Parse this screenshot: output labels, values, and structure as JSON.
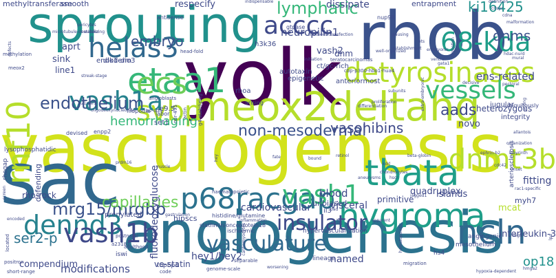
{
  "words": [
    {
      "text": "vasculogenesis",
      "color": "#d2e21b",
      "size": 1.0
    },
    {
      "text": "angiogenesis",
      "color": "#2c728e",
      "size": 0.92
    },
    {
      "text": "yolk",
      "color": "#440154",
      "size": 0.86
    },
    {
      "text": "rhob",
      "color": "#3b528b",
      "size": 0.8
    },
    {
      "text": "sac",
      "color": "#31688e",
      "size": 0.78
    },
    {
      "text": "sprouting",
      "color": "#21918c",
      "size": 0.72
    },
    {
      "text": "meox2deltahq",
      "color": "#b5de2b",
      "size": 0.55
    },
    {
      "text": "etaa1",
      "color": "#35b779",
      "size": 0.5
    },
    {
      "text": "detyrosinases",
      "color": "#b5de2b",
      "size": 0.48
    },
    {
      "text": "tbata",
      "color": "#1f9e89",
      "size": 0.46
    },
    {
      "text": "p68racgap",
      "color": "#2c728e",
      "size": 0.45
    },
    {
      "text": "acccc",
      "color": "#3e4989",
      "size": 0.43
    },
    {
      "text": "helas3",
      "color": "#31688e",
      "size": 0.42
    },
    {
      "text": "vash1a",
      "color": "#26828e",
      "size": 0.4
    },
    {
      "text": "hygroma",
      "color": "#1f9e89",
      "size": 0.4
    },
    {
      "text": "dnmt3b",
      "color": "#b5de2b",
      "size": 0.38
    },
    {
      "text": "dennd3",
      "color": "#26828e",
      "size": 0.38
    },
    {
      "text": "vash1b",
      "color": "#3e4989",
      "size": 0.37
    },
    {
      "text": "ncln",
      "color": "#31688e",
      "size": 0.37
    },
    {
      "text": "rnf10",
      "color": "#b5de2b",
      "size": 0.36
    },
    {
      "text": "ecs",
      "color": "#6ece58",
      "size": 0.35
    },
    {
      "text": "svbp",
      "color": "#b5de2b",
      "size": 0.34
    },
    {
      "text": "68-kda",
      "color": "#1f9e89",
      "size": 0.34
    },
    {
      "text": "vash1",
      "color": "#35b779",
      "size": 0.33
    },
    {
      "text": "vessels",
      "color": "#35b779",
      "size": 0.32
    },
    {
      "text": "vasculature",
      "color": "#31688e",
      "size": 0.3
    },
    {
      "text": "mrg15/mrgbp",
      "color": "#3b528b",
      "size": 0.28
    },
    {
      "text": "insulator",
      "color": "#3e4989",
      "size": 0.28
    },
    {
      "text": "capillaries",
      "color": "#6ece58",
      "size": 0.26
    },
    {
      "text": "endothelium",
      "color": "#3b528b",
      "size": 0.25
    },
    {
      "text": "non-mesodermal",
      "color": "#3b528b",
      "size": 0.24
    },
    {
      "text": "lymphatic",
      "color": "#35b779",
      "size": 0.24
    },
    {
      "text": "ki16425",
      "color": "#21918c",
      "size": 0.23
    },
    {
      "text": "vasohibins",
      "color": "#3e4989",
      "size": 0.23
    },
    {
      "text": "dnms",
      "color": "#3b528b",
      "size": 0.22
    },
    {
      "text": "aads",
      "color": "#3e4989",
      "size": 0.22
    },
    {
      "text": "embryo",
      "color": "#3b528b",
      "size": 0.2
    },
    {
      "text": "ser2-p",
      "color": "#2c728e",
      "size": 0.2
    },
    {
      "text": "op18",
      "color": "#21918c",
      "size": 0.2
    },
    {
      "text": "hemorrhaging",
      "color": "#35b779",
      "size": 0.19
    },
    {
      "text": "neuropilin1",
      "color": "#3e4989",
      "size": 0.18
    },
    {
      "text": "modifications",
      "color": "#3e4989",
      "size": 0.17
    },
    {
      "text": "hey1/hey2",
      "color": "#3e4989",
      "size": 0.16
    },
    {
      "text": "cardiovascular",
      "color": "#3e4989",
      "size": 0.16
    },
    {
      "text": "interleukin-3",
      "color": "#3e4989",
      "size": 0.16
    },
    {
      "text": "ens-related",
      "color": "#3e4989",
      "size": 0.15
    },
    {
      "text": "visceral",
      "color": "#3e4989",
      "size": 0.15
    },
    {
      "text": "dissipate",
      "color": "#3e4989",
      "size": 0.15
    },
    {
      "text": "named",
      "color": "#3e4989",
      "size": 0.15
    },
    {
      "text": "blood",
      "color": "#3e4989",
      "size": 0.15
    },
    {
      "text": "fitting",
      "color": "#3e4989",
      "size": 0.15
    },
    {
      "text": "vash2",
      "color": "#3e4989",
      "size": 0.14
    },
    {
      "text": "novo",
      "color": "#3e4989",
      "size": 0.14
    },
    {
      "text": "respecify",
      "color": "#3e4989",
      "size": 0.14
    },
    {
      "text": "fluorodeoxyglucose",
      "color": "#3e4989",
      "size": 0.14
    },
    {
      "text": "mcat",
      "color": "#b5de2b",
      "size": 0.14
    },
    {
      "text": "quadruplex",
      "color": "#3e4989",
      "size": 0.14
    },
    {
      "text": "compendium",
      "color": "#3e4989",
      "size": 0.13
    },
    {
      "text": "sink",
      "color": "#3e4989",
      "size": 0.13
    },
    {
      "text": "islands",
      "color": "#3e4989",
      "size": 0.13
    },
    {
      "text": "aprt",
      "color": "#3e4989",
      "size": 0.13
    },
    {
      "text": "dnm",
      "color": "#3e4989",
      "size": 0.13
    },
    {
      "text": "line1",
      "color": "#3e4989",
      "size": 0.12
    },
    {
      "text": "ve-statin",
      "color": "#3e4989",
      "size": 0.12
    },
    {
      "text": "rho-rock",
      "color": "#3e4989",
      "size": 0.12
    },
    {
      "text": "heterozygous",
      "color": "#3e4989",
      "size": 0.12
    },
    {
      "text": "primitive",
      "color": "#3e4989",
      "size": 0.12
    },
    {
      "text": "hipscs",
      "color": "#3e4989",
      "size": 0.12
    },
    {
      "text": "defending",
      "color": "#3e4989",
      "size": 0.11
    },
    {
      "text": "unbiased",
      "color": "#3e4989",
      "size": 0.11
    },
    {
      "text": "myh7",
      "color": "#3e4989",
      "size": 0.11
    },
    {
      "text": "smooth",
      "color": "#3e4989",
      "size": 0.11
    },
    {
      "text": "methyltransferase",
      "color": "#3e4989",
      "size": 0.11
    },
    {
      "text": "entrapment",
      "color": "#3e4989",
      "size": 0.11
    },
    {
      "text": "prenylated",
      "color": "#3e4989",
      "size": 0.11
    },
    {
      "text": "epigenetic",
      "color": "#3e4989",
      "size": 0.1
    },
    {
      "text": "ct/gc-rich",
      "color": "#3e4989",
      "size": 0.1
    },
    {
      "text": "anteriormost",
      "color": "#3e4989",
      "size": 0.1
    },
    {
      "text": "autotaxin",
      "color": "#3e4989",
      "size": 0.1
    },
    {
      "text": "rhoa",
      "color": "#3e4989",
      "size": 0.1
    },
    {
      "text": "dlk1-dio3",
      "color": "#3e4989",
      "size": 0.1
    },
    {
      "text": "endoderm",
      "color": "#3e4989",
      "size": 0.1
    },
    {
      "text": "h3k36",
      "color": "#3e4989",
      "size": 0.1
    },
    {
      "text": "jugular",
      "color": "#3e4989",
      "size": 0.1
    },
    {
      "text": "integrity",
      "color": "#3e4989",
      "size": 0.1
    },
    {
      "text": "e9.5",
      "color": "#3e4989",
      "size": 0.1
    },
    {
      "text": "set1",
      "color": "#3e4989",
      "size": 0.1
    },
    {
      "text": "il3",
      "color": "#3e4989",
      "size": 0.1
    },
    {
      "text": "lineage",
      "color": "#3e4989",
      "size": 0.1
    },
    {
      "text": "topbp1",
      "color": "#3e4989",
      "size": 0.09
    },
    {
      "text": "iswi",
      "color": "#3e4989",
      "size": 0.09
    },
    {
      "text": "hs4",
      "color": "#3e4989",
      "size": 0.09
    },
    {
      "text": "mesothelium",
      "color": "#3e4989",
      "size": 0.09
    },
    {
      "text": "angiogenic",
      "color": "#3e4989",
      "size": 0.09
    },
    {
      "text": "lysophosphatidic",
      "color": "#3e4989",
      "size": 0.09
    },
    {
      "text": "rhogap",
      "color": "#3e4989",
      "size": 0.09
    },
    {
      "text": "arteriosclerosis",
      "color": "#3e4989",
      "size": 0.09
    },
    {
      "text": "hypervascularization",
      "color": "#3e4989",
      "size": 0.09
    },
    {
      "text": "stathmin/oncoprotein18",
      "color": "#3e4989",
      "size": 0.09
    },
    {
      "text": "ischaemic",
      "color": "#3e4989",
      "size": 0.08
    },
    {
      "text": "histidine/glutamine",
      "color": "#3e4989",
      "size": 0.08
    },
    {
      "text": "ubiquitously",
      "color": "#3e4989",
      "size": 0.08
    },
    {
      "text": "enpp2",
      "color": "#3e4989",
      "size": 0.08
    },
    {
      "text": "devised",
      "color": "#3e4989",
      "size": 0.08
    },
    {
      "text": "labor",
      "color": "#3e4989",
      "size": 0.08
    },
    {
      "text": "arising",
      "color": "#3e4989",
      "size": 0.08
    },
    {
      "text": "filopodia",
      "color": "#3e4989",
      "size": 0.08
    },
    {
      "text": "antisense",
      "color": "#3e4989",
      "size": 0.08
    },
    {
      "text": "nup98",
      "color": "#3e4989",
      "size": 0.08
    },
    {
      "text": "gtpase",
      "color": "#3e4989",
      "size": 0.08
    },
    {
      "text": "teratocarcinomas",
      "color": "#3e4989",
      "size": 0.08
    },
    {
      "text": "cbp-p300-hbo1-hua4",
      "color": "#3e4989",
      "size": 0.07
    },
    {
      "text": "meox2",
      "color": "#3e4989",
      "size": 0.07
    },
    {
      "text": "methylation",
      "color": "#3e4989",
      "size": 0.07
    },
    {
      "text": "head-fold",
      "color": "#3e4989",
      "size": 0.07
    },
    {
      "text": "angioblasts",
      "color": "#3e4989",
      "size": 0.07
    },
    {
      "text": "as-odn",
      "color": "#3e4989",
      "size": 0.07
    },
    {
      "text": "mir-495",
      "color": "#3e4989",
      "size": 0.07
    },
    {
      "text": "actin",
      "color": "#3e4989",
      "size": 0.07
    },
    {
      "text": "g4-stabilizing",
      "color": "#3e4989",
      "size": 0.07
    },
    {
      "text": "haematopoietic",
      "color": "#3e4989",
      "size": 0.07
    },
    {
      "text": "postnatal",
      "color": "#3e4989",
      "size": 0.07
    },
    {
      "text": "adulthood",
      "color": "#3e4989",
      "size": 0.07
    },
    {
      "text": "a23187",
      "color": "#3e4989",
      "size": 0.07
    },
    {
      "text": "positron",
      "color": "#3e4989",
      "size": 0.07
    },
    {
      "text": "short-range",
      "color": "#3e4989",
      "size": 0.07
    },
    {
      "text": "code",
      "color": "#3e4989",
      "size": 0.07
    },
    {
      "text": "genome-scale",
      "color": "#3e4989",
      "size": 0.07
    },
    {
      "text": "separable",
      "color": "#3e4989",
      "size": 0.07
    },
    {
      "text": "migration",
      "color": "#3e4989",
      "size": 0.07
    },
    {
      "text": "located",
      "color": "#3e4989",
      "size": 0.07
    },
    {
      "text": "encoded",
      "color": "#3e4989",
      "size": 0.07
    },
    {
      "text": "gastrulation",
      "color": "#3e4989",
      "size": 0.07
    },
    {
      "text": "worsening",
      "color": "#3e4989",
      "size": 0.06
    },
    {
      "text": "establishment",
      "color": "#3e4989",
      "size": 0.06
    },
    {
      "text": "definition",
      "color": "#3e4989",
      "size": 0.06
    },
    {
      "text": "crispr",
      "color": "#3e4989",
      "size": 0.06
    },
    {
      "text": "cdna",
      "color": "#3e4989",
      "size": 0.06
    },
    {
      "text": "malformation",
      "color": "#3e4989",
      "size": 0.06
    },
    {
      "text": "hdac-nurd",
      "color": "#3e4989",
      "size": 0.06
    },
    {
      "text": "mural",
      "color": "#3e4989",
      "size": 0.06
    },
    {
      "text": "well-organized",
      "color": "#3e4989",
      "size": 0.06
    },
    {
      "text": "indispensable",
      "color": "#3e4989",
      "size": 0.06
    },
    {
      "text": "microtubule-destabilizing",
      "color": "#3e4989",
      "size": 0.06
    },
    {
      "text": "emission",
      "color": "#3e4989",
      "size": 0.06
    },
    {
      "text": "pericytes",
      "color": "#3e4989",
      "size": 0.06
    },
    {
      "text": "defects",
      "color": "#3e4989",
      "size": 0.06
    },
    {
      "text": "initiation",
      "color": "#3e4989",
      "size": 0.06
    },
    {
      "text": "transient-transfection",
      "color": "#3e4989",
      "size": 0.06
    },
    {
      "text": "pausing",
      "color": "#3e4989",
      "size": 0.06
    },
    {
      "text": "acting",
      "color": "#3e4989",
      "size": 0.06
    },
    {
      "text": "decisive",
      "color": "#3e4989",
      "size": 0.06
    },
    {
      "text": "allantois",
      "color": "#3e4989",
      "size": 0.06
    },
    {
      "text": "organization",
      "color": "#3e4989",
      "size": 0.06
    },
    {
      "text": "labyrinth",
      "color": "#3e4989",
      "size": 0.06
    },
    {
      "text": "ephrin-b2",
      "color": "#3e4989",
      "size": 0.06
    },
    {
      "text": "cdc42",
      "color": "#3e4989",
      "size": 0.06
    },
    {
      "text": "onset",
      "color": "#3e4989",
      "size": 0.06
    },
    {
      "text": "rac1-specific",
      "color": "#3e4989",
      "size": 0.06
    },
    {
      "text": "jagged1",
      "color": "#3e4989",
      "size": 0.06
    },
    {
      "text": "beta-globin",
      "color": "#3e4989",
      "size": 0.06
    },
    {
      "text": "retinol",
      "color": "#3e4989",
      "size": 0.06
    },
    {
      "text": "bound",
      "color": "#3e4989",
      "size": 0.06
    },
    {
      "text": "fate",
      "color": "#3e4989",
      "size": 0.06
    },
    {
      "text": "hey",
      "color": "#3e4989",
      "size": 0.06
    },
    {
      "text": "prdm16",
      "color": "#3e4989",
      "size": 0.06
    },
    {
      "text": "muscle",
      "color": "#3e4989",
      "size": 0.06
    },
    {
      "text": "pad",
      "color": "#3e4989",
      "size": 0.06
    },
    {
      "text": "hmga2",
      "color": "#3e4989",
      "size": 0.06
    },
    {
      "text": "hypoxia-dependent",
      "color": "#3e4989",
      "size": 0.06
    },
    {
      "text": "vegf",
      "color": "#3e4989",
      "size": 0.06
    },
    {
      "text": "lpa",
      "color": "#3e4989",
      "size": 0.06
    },
    {
      "text": "screen",
      "color": "#3e4989",
      "size": 0.06
    },
    {
      "text": "streak-stage",
      "color": "#3e4989",
      "size": 0.06
    },
    {
      "text": "p21waf1",
      "color": "#3e4989",
      "size": 0.06
    },
    {
      "text": "oligodeoxynucleotide",
      "color": "#3e4989",
      "size": 0.06
    },
    {
      "text": "inflammation",
      "color": "#3e4989",
      "size": 0.06
    },
    {
      "text": "cardiomyocytes",
      "color": "#3e4989",
      "size": 0.06
    },
    {
      "text": "fgf",
      "color": "#3e4989",
      "size": 0.06
    },
    {
      "text": "aneurysms",
      "color": "#3e4989",
      "size": 0.06
    },
    {
      "text": "apparent",
      "color": "#3e4989",
      "size": 0.06
    },
    {
      "text": "hematopoietic",
      "color": "#3e4989",
      "size": 0.06
    },
    {
      "text": "extra-embryonic",
      "color": "#3e4989",
      "size": 0.06
    },
    {
      "text": "formation",
      "color": "#3e4989",
      "size": 0.06
    },
    {
      "text": "pectoral",
      "color": "#3e4989",
      "size": 0.06
    },
    {
      "text": "subunits",
      "color": "#3e4989",
      "size": 0.06
    },
    {
      "text": "proliferation",
      "color": "#3e4989",
      "size": 0.06
    },
    {
      "text": "hscr",
      "color": "#3e4989",
      "size": 0.06
    },
    {
      "text": "kdrl",
      "color": "#3e4989",
      "size": 0.06
    },
    {
      "text": "chondrocytes",
      "color": "#3e4989",
      "size": 0.06
    },
    {
      "text": "differentiation",
      "color": "#3e4989",
      "size": 0.06
    },
    {
      "text": "ets",
      "color": "#3e4989",
      "size": 0.06
    },
    {
      "text": "embryonic",
      "color": "#3e4989",
      "size": 0.06
    },
    {
      "text": "ventral",
      "color": "#3e4989",
      "size": 0.06
    },
    {
      "text": "gata1",
      "color": "#3e4989",
      "size": 0.06
    },
    {
      "text": "vinculin",
      "color": "#3e4989",
      "size": 0.06
    },
    {
      "text": "zebrafish",
      "color": "#3e4989",
      "size": 0.06
    }
  ]
}
